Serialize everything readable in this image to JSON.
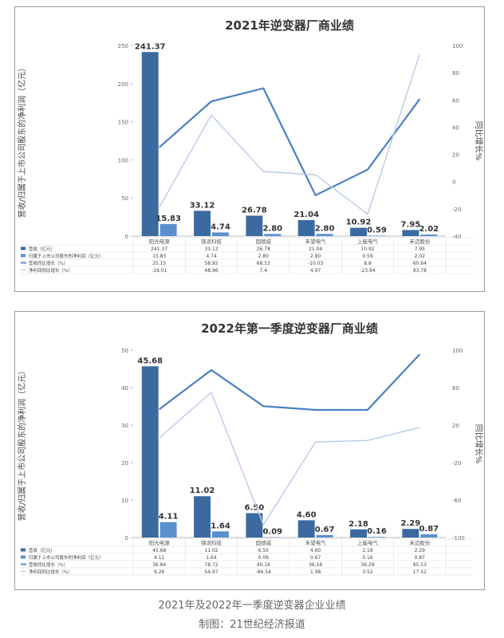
{
  "colors": {
    "revenue_bar": "#3a6aa0",
    "profit_bar": "#5b8fd0",
    "revenue_growth_line": "#4a7fc1",
    "profit_growth_line": "#b9cbe6",
    "axis_text": "#666666",
    "title": "#333333",
    "grid": "#e4e4e4"
  },
  "chart_data": [
    {
      "type": "bar",
      "title": "2021年逆变器厂商业绩",
      "ylabel": "营收/归属于上市公司股东的净利润（亿元）",
      "y2label": "同比增长%",
      "ylim": [
        0,
        250
      ],
      "yticks": [
        "0",
        "50",
        "100",
        "150",
        "200",
        "250"
      ],
      "y2lim": [
        -40,
        100
      ],
      "y2ticks": [
        "-40",
        "-20",
        "0",
        "20",
        "40",
        "60",
        "80",
        "100"
      ],
      "categories": [
        "阳光电源",
        "锦浪科技",
        "固德威",
        "禾望电气",
        "上能电气",
        "禾迈股份"
      ],
      "series": [
        {
          "name": "营收（亿元）",
          "kind": "bar",
          "values": [
            241.37,
            33.12,
            26.78,
            21.04,
            10.92,
            7.95
          ],
          "labels": [
            "241.37",
            "33.12",
            "26.78",
            "21.04",
            "10.92",
            "7.95"
          ]
        },
        {
          "name": "归属于上市公司股东的净利润（亿元）",
          "kind": "bar",
          "values": [
            15.83,
            4.74,
            2.8,
            2.8,
            0.59,
            2.02
          ],
          "labels": [
            "15.83",
            "4.74",
            "2.80",
            "2.80",
            "0.59",
            "2.02"
          ]
        },
        {
          "name": "营收同比增长（%）",
          "kind": "line",
          "values": [
            25.15,
            58.92,
            68.53,
            -10.03,
            8.8,
            60.64
          ],
          "labels": [
            "25.15",
            "58.92",
            "68.53",
            "-10.03",
            "8.8",
            "60.64"
          ]
        },
        {
          "name": "净利润同比增长（%）",
          "kind": "line",
          "values": [
            -19.01,
            48.96,
            7.4,
            4.97,
            -23.94,
            93.78
          ],
          "labels": [
            "-19.01",
            "48.96",
            "7.4",
            "4.97",
            "-23.94",
            "93.78"
          ]
        }
      ]
    },
    {
      "type": "bar",
      "title": "2022年第一季度逆变器厂商业绩",
      "ylabel": "营收/归属于上市公司股东的净利润（亿元）",
      "y2label": "同比增长%",
      "ylim": [
        0,
        50
      ],
      "yticks": [
        "0",
        "10",
        "20",
        "30",
        "40",
        "50"
      ],
      "y2lim": [
        -100,
        100
      ],
      "y2ticks": [
        "-100",
        "-60",
        "-20",
        "20",
        "60",
        "100"
      ],
      "categories": [
        "阳光电源",
        "锦浪科技",
        "固德威",
        "禾望电气",
        "上能电气",
        "禾迈股份"
      ],
      "series": [
        {
          "name": "营收（亿元）",
          "kind": "bar",
          "values": [
            45.68,
            11.02,
            6.5,
            4.6,
            2.18,
            2.29
          ],
          "labels": [
            "45.68",
            "11.02",
            "6.50",
            "4.60",
            "2.18",
            "2.29"
          ]
        },
        {
          "name": "归属于上市公司股东的净利润（亿元）",
          "kind": "bar",
          "values": [
            4.11,
            1.64,
            0.09,
            0.67,
            0.16,
            0.87
          ],
          "labels": [
            "4.11",
            "1.64",
            "0.09",
            "0.67",
            "0.16",
            "0.87"
          ]
        },
        {
          "name": "营收同比增长（%）",
          "kind": "line",
          "values": [
            36.84,
            78.72,
            40.16,
            36.16,
            36.29,
            95.53
          ],
          "labels": [
            "36.84",
            "78.72",
            "40.16",
            "36.16",
            "36.29",
            "95.53"
          ]
        },
        {
          "name": "净利润同比增长（%）",
          "kind": "line",
          "values": [
            6.26,
            54.97,
            -86.54,
            1.98,
            3.52,
            17.52
          ],
          "labels": [
            "6.26",
            "54.97",
            "-86.54",
            "1.98",
            "3.52",
            "17.52"
          ]
        }
      ]
    }
  ],
  "captions": {
    "main": "2021年及2022年一季度逆变器企业业绩",
    "credit": "制图：21世纪经济报道"
  }
}
